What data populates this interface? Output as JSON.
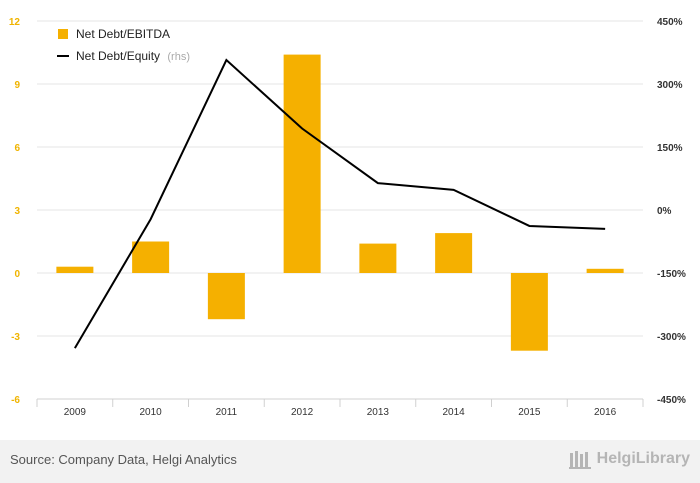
{
  "chart_data": {
    "type": "bar+line",
    "categories": [
      "2009",
      "2010",
      "2011",
      "2012",
      "2013",
      "2014",
      "2015",
      "2016"
    ],
    "series": [
      {
        "name": "Net Debt/EBITDA",
        "type": "bar",
        "axis": "left",
        "color": "#f5b000",
        "values": [
          0.3,
          1.5,
          -2.2,
          10.4,
          1.4,
          1.9,
          -3.7,
          0.2
        ]
      },
      {
        "name": "Net Debt/Equity",
        "note": "(rhs)",
        "type": "line",
        "axis": "right",
        "color": "#000000",
        "values": [
          -329,
          -22,
          357,
          194,
          64,
          48,
          -38,
          -45
        ]
      }
    ],
    "left_axis": {
      "min": -6,
      "max": 12,
      "ticks": [
        "12",
        "9",
        "6",
        "3",
        "0",
        "-3",
        "-6"
      ],
      "tick_values": [
        12,
        9,
        6,
        3,
        0,
        -3,
        -6
      ]
    },
    "right_axis": {
      "min": -450,
      "max": 450,
      "ticks": [
        "450%",
        "300%",
        "150%",
        "0%",
        "-150%",
        "-300%",
        "-450%"
      ],
      "tick_values": [
        450,
        300,
        150,
        0,
        -150,
        -300,
        -450
      ]
    },
    "legend_position": "top-left",
    "grid": true
  },
  "footer": {
    "source": "Source: Company Data, Helgi Analytics",
    "brand": "HelgiLibrary"
  }
}
